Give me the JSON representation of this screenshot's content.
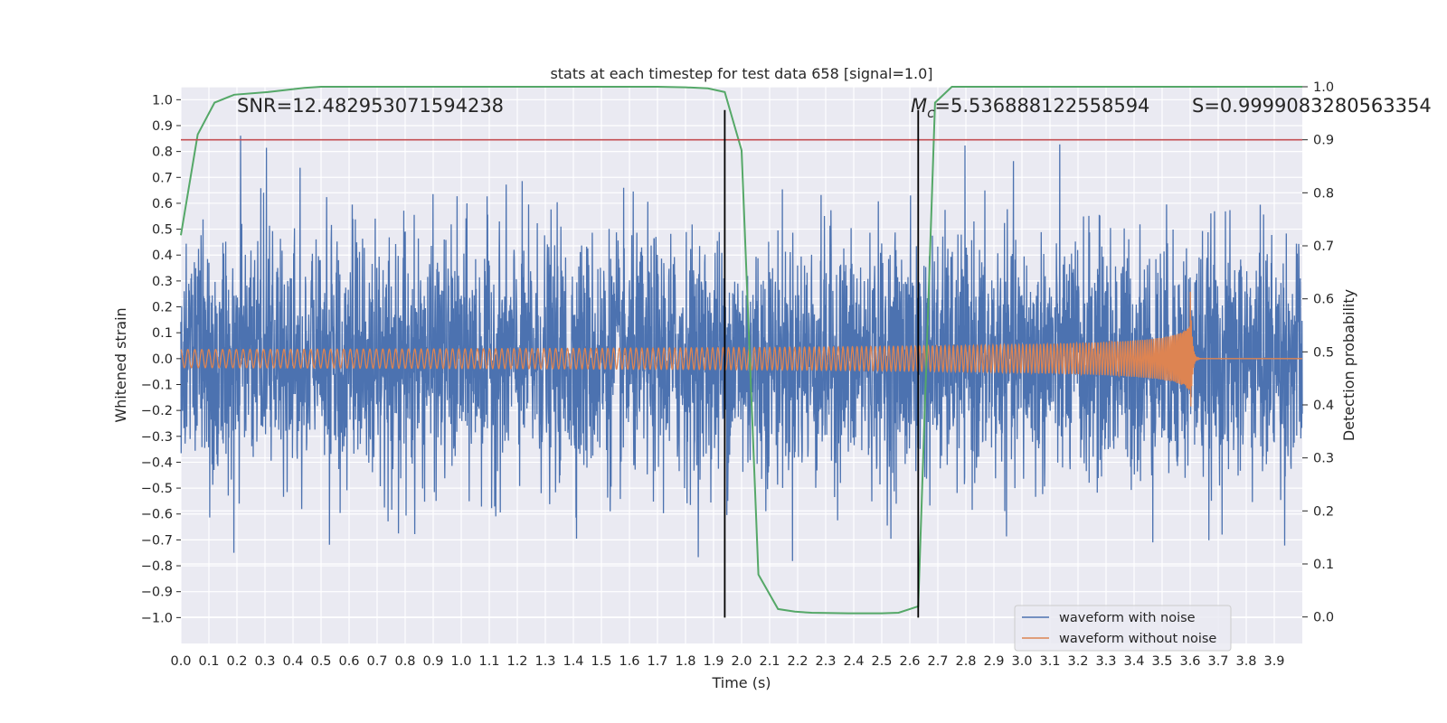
{
  "chart_data": {
    "type": "line",
    "title": "stats at each timestep for test data 658 [signal=1.0]",
    "xlabel": "Time (s)",
    "ylabel": "Whitened strain",
    "y2label": "Detection probability",
    "xlim": [
      0.0,
      4.0
    ],
    "ylim": [
      -1.1,
      1.05
    ],
    "y2lim": [
      -0.05,
      1.0
    ],
    "x_ticks": [
      "0.0",
      "0.1",
      "0.2",
      "0.3",
      "0.4",
      "0.5",
      "0.6",
      "0.7",
      "0.8",
      "0.9",
      "1.0",
      "1.1",
      "1.2",
      "1.3",
      "1.4",
      "1.5",
      "1.6",
      "1.7",
      "1.8",
      "1.9",
      "2.0",
      "2.1",
      "2.2",
      "2.3",
      "2.4",
      "2.5",
      "2.6",
      "2.7",
      "2.8",
      "2.9",
      "3.0",
      "3.1",
      "3.2",
      "3.3",
      "3.4",
      "3.5",
      "3.6",
      "3.7",
      "3.8",
      "3.9"
    ],
    "y_ticks": [
      "1.0",
      "0.9",
      "0.8",
      "0.7",
      "0.6",
      "0.5",
      "0.4",
      "0.3",
      "0.2",
      "0.1",
      "0.0",
      "−0.1",
      "−0.2",
      "−0.3",
      "−0.4",
      "−0.5",
      "−0.6",
      "−0.7",
      "−0.8",
      "−0.9",
      "−1.0"
    ],
    "y2_ticks": [
      "1.0",
      "0.9",
      "0.8",
      "0.7",
      "0.6",
      "0.5",
      "0.4",
      "0.3",
      "0.2",
      "0.1",
      "0.0"
    ],
    "grid": true,
    "legend_position": "lower-right",
    "series": [
      {
        "name": "waveform with noise",
        "axis": "left",
        "color": "#4c72b0",
        "description_note": "noisy whitened strain sampled at high rate, amplitude mostly within -0.6..0.7 with peaks near ±1.0",
        "approx_amplitude": 0.55
      },
      {
        "name": "waveform without noise",
        "axis": "left",
        "color": "#dd8452",
        "chirp": {
          "start_x": 0.0,
          "merger_x": 3.6,
          "end_x": 4.0,
          "start_amplitude": 0.035,
          "peak_amplitude": 0.3,
          "negative_peak": -0.38,
          "post_merger_value": 0.0
        }
      },
      {
        "name": "",
        "axis": "right",
        "color": "#55a868",
        "x": [
          0.0,
          0.06,
          0.12,
          0.19,
          0.31,
          0.44,
          0.5,
          0.6,
          1.0,
          1.5,
          1.7,
          1.8,
          1.88,
          1.94,
          2.0,
          2.06,
          2.13,
          2.19,
          2.25,
          2.38,
          2.5,
          2.56,
          2.63,
          2.69,
          2.75,
          2.88,
          3.0,
          3.5,
          4.0
        ],
        "y": [
          0.72,
          0.91,
          0.97,
          0.985,
          0.99,
          0.998,
          1.0,
          1.0,
          1.0,
          1.0,
          1.0,
          0.999,
          0.997,
          0.99,
          0.88,
          0.08,
          0.015,
          0.01,
          0.008,
          0.007,
          0.007,
          0.008,
          0.02,
          0.97,
          1.0,
          1.0,
          1.0,
          1.0,
          1.0
        ]
      }
    ],
    "threshold": {
      "axis": "right",
      "y": 0.9,
      "color": "#c44e52"
    },
    "vlines": [
      {
        "x": 1.94,
        "y_from": -1.0,
        "y_to": 0.96
      },
      {
        "x": 2.63,
        "y_from": -1.0,
        "y_to": 0.96
      }
    ],
    "annotations": {
      "snr": "SNR=12.482953071594238",
      "mc_sym": "M",
      "mc_sub": "c",
      "mc_val": "=5.536888122558594",
      "s": "S=0.9999083280563354"
    }
  }
}
